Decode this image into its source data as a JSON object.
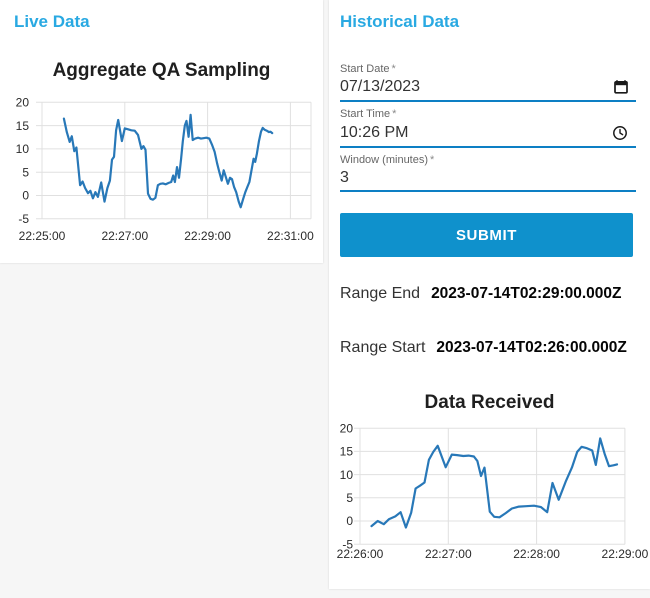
{
  "left_panel": {
    "title": "Live Data"
  },
  "right_panel": {
    "title": "Historical Data",
    "fields": [
      {
        "label": "Start Date",
        "required": "*",
        "value": "07/13/2023",
        "icon": "calendar"
      },
      {
        "label": "Start Time",
        "required": "*",
        "value": "10:26 PM",
        "icon": "clock"
      },
      {
        "label": "Window (minutes)",
        "required": "*",
        "value": "3",
        "icon": null
      }
    ],
    "submit_label": "SUBMIT",
    "results": [
      {
        "label": "Range End",
        "value": "2023-07-14T02:29:00.000Z"
      },
      {
        "label": "Range Start",
        "value": "2023-07-14T02:26:00.000Z"
      }
    ]
  },
  "colors": {
    "heading_blue": "#29a9e2",
    "button_bg": "#0f91cc",
    "button_text": "#ffffff",
    "field_underline": "#0d7fc4",
    "chart_line": "#2878b8",
    "grid": "#e0e0e0",
    "tick_text": "#2b2b2b",
    "card_bg": "#ffffff",
    "page_bg": "#f6f6f6"
  },
  "chart_data": [
    {
      "type": "line",
      "title": "Aggregate QA Sampling",
      "xlabel": "",
      "ylabel": "",
      "ylim": [
        -5,
        20
      ],
      "yticks": [
        20,
        15,
        10,
        5,
        0,
        -5
      ],
      "xticks": [
        {
          "m": 0,
          "label": "22:25:00"
        },
        {
          "m": 2,
          "label": "22:27:00"
        },
        {
          "m": 4,
          "label": "22:29:00"
        },
        {
          "m": 6,
          "label": "22:31:00"
        }
      ],
      "x_unit": "minutes after 22:25:00",
      "grid": true,
      "legend": false,
      "points": [
        [
          0.53,
          16.5
        ],
        [
          0.6,
          13.6
        ],
        [
          0.67,
          11.5
        ],
        [
          0.72,
          12.7
        ],
        [
          0.78,
          9.5
        ],
        [
          0.83,
          10.3
        ],
        [
          0.92,
          2.2
        ],
        [
          0.98,
          3.0
        ],
        [
          1.04,
          1.6
        ],
        [
          1.11,
          0.5
        ],
        [
          1.17,
          1.0
        ],
        [
          1.23,
          -0.6
        ],
        [
          1.29,
          0.7
        ],
        [
          1.35,
          -0.3
        ],
        [
          1.43,
          2.8
        ],
        [
          1.51,
          -1.3
        ],
        [
          1.58,
          1.6
        ],
        [
          1.64,
          3.2
        ],
        [
          1.69,
          7.7
        ],
        [
          1.74,
          8.3
        ],
        [
          1.79,
          14.0
        ],
        [
          1.84,
          16.2
        ],
        [
          1.93,
          11.7
        ],
        [
          2.0,
          14.4
        ],
        [
          2.08,
          14.2
        ],
        [
          2.16,
          14.0
        ],
        [
          2.24,
          13.9
        ],
        [
          2.32,
          13.0
        ],
        [
          2.4,
          10.0
        ],
        [
          2.45,
          10.6
        ],
        [
          2.5,
          9.8
        ],
        [
          2.56,
          0.4
        ],
        [
          2.62,
          -0.7
        ],
        [
          2.68,
          -0.9
        ],
        [
          2.74,
          -0.5
        ],
        [
          2.8,
          2.2
        ],
        [
          2.86,
          2.5
        ],
        [
          2.92,
          2.6
        ],
        [
          2.99,
          2.4
        ],
        [
          3.06,
          2.7
        ],
        [
          3.12,
          2.9
        ],
        [
          3.17,
          4.3
        ],
        [
          3.21,
          2.9
        ],
        [
          3.26,
          6.1
        ],
        [
          3.31,
          3.8
        ],
        [
          3.36,
          7.9
        ],
        [
          3.4,
          11.6
        ],
        [
          3.45,
          15.0
        ],
        [
          3.49,
          16.0
        ],
        [
          3.54,
          12.6
        ],
        [
          3.59,
          17.3
        ],
        [
          3.64,
          11.9
        ],
        [
          3.7,
          12.2
        ],
        [
          3.77,
          12.4
        ],
        [
          3.84,
          12.2
        ],
        [
          3.9,
          12.3
        ],
        [
          3.97,
          12.4
        ],
        [
          4.04,
          12.2
        ],
        [
          4.11,
          10.8
        ],
        [
          4.17,
          9.4
        ],
        [
          4.23,
          6.9
        ],
        [
          4.29,
          4.8
        ],
        [
          4.34,
          3.2
        ],
        [
          4.39,
          5.4
        ],
        [
          4.44,
          4.0
        ],
        [
          4.49,
          2.5
        ],
        [
          4.54,
          3.8
        ],
        [
          4.59,
          3.5
        ],
        [
          4.64,
          1.8
        ],
        [
          4.69,
          0.7
        ],
        [
          4.75,
          -1.3
        ],
        [
          4.8,
          -2.5
        ],
        [
          4.86,
          -0.7
        ],
        [
          4.91,
          0.7
        ],
        [
          4.96,
          1.8
        ],
        [
          5.01,
          2.9
        ],
        [
          5.06,
          5.4
        ],
        [
          5.11,
          7.9
        ],
        [
          5.15,
          7.2
        ],
        [
          5.19,
          9.0
        ],
        [
          5.24,
          11.6
        ],
        [
          5.29,
          13.7
        ],
        [
          5.33,
          14.5
        ],
        [
          5.38,
          14.1
        ],
        [
          5.43,
          13.9
        ],
        [
          5.48,
          13.6
        ],
        [
          5.52,
          13.7
        ],
        [
          5.56,
          13.4
        ]
      ]
    },
    {
      "type": "line",
      "title": "Data Received",
      "xlabel": "",
      "ylabel": "",
      "ylim": [
        -5,
        20
      ],
      "yticks": [
        20,
        15,
        10,
        5,
        0,
        -5
      ],
      "xticks": [
        {
          "m": 0,
          "label": "22:26:00"
        },
        {
          "m": 1,
          "label": "22:27:00"
        },
        {
          "m": 2,
          "label": "22:28:00"
        },
        {
          "m": 3,
          "label": "22:29:00"
        }
      ],
      "x_unit": "minutes after 22:26:00",
      "grid": true,
      "legend": false,
      "points": [
        [
          0.13,
          -1.1
        ],
        [
          0.2,
          0.0
        ],
        [
          0.27,
          -0.7
        ],
        [
          0.33,
          0.4
        ],
        [
          0.4,
          1.0
        ],
        [
          0.46,
          1.9
        ],
        [
          0.52,
          -1.4
        ],
        [
          0.58,
          1.8
        ],
        [
          0.63,
          7.0
        ],
        [
          0.68,
          7.6
        ],
        [
          0.73,
          8.3
        ],
        [
          0.78,
          13.2
        ],
        [
          0.83,
          14.9
        ],
        [
          0.88,
          16.2
        ],
        [
          0.97,
          11.6
        ],
        [
          1.04,
          14.3
        ],
        [
          1.1,
          14.2
        ],
        [
          1.17,
          14.0
        ],
        [
          1.23,
          14.1
        ],
        [
          1.29,
          13.9
        ],
        [
          1.33,
          12.9
        ],
        [
          1.37,
          9.7
        ],
        [
          1.41,
          11.5
        ],
        [
          1.47,
          2.0
        ],
        [
          1.52,
          0.9
        ],
        [
          1.58,
          0.8
        ],
        [
          1.65,
          1.7
        ],
        [
          1.72,
          2.7
        ],
        [
          1.8,
          3.1
        ],
        [
          1.88,
          3.2
        ],
        [
          1.97,
          3.3
        ],
        [
          2.05,
          3.0
        ],
        [
          2.12,
          1.9
        ],
        [
          2.18,
          8.2
        ],
        [
          2.25,
          4.6
        ],
        [
          2.33,
          8.5
        ],
        [
          2.4,
          11.5
        ],
        [
          2.46,
          14.9
        ],
        [
          2.51,
          16.0
        ],
        [
          2.57,
          15.7
        ],
        [
          2.63,
          15.2
        ],
        [
          2.67,
          12.1
        ],
        [
          2.72,
          17.8
        ],
        [
          2.77,
          14.5
        ],
        [
          2.82,
          11.8
        ],
        [
          2.87,
          12.0
        ],
        [
          2.91,
          12.2
        ]
      ]
    }
  ]
}
